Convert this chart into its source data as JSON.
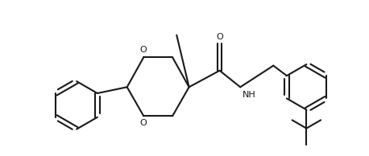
{
  "background_color": "#ffffff",
  "line_color": "#1a1a1a",
  "line_width": 1.5,
  "figsize": [
    4.58,
    1.94
  ],
  "dpi": 100,
  "xlim": [
    0.0,
    9.16
  ],
  "ylim": [
    0.0,
    3.88
  ]
}
